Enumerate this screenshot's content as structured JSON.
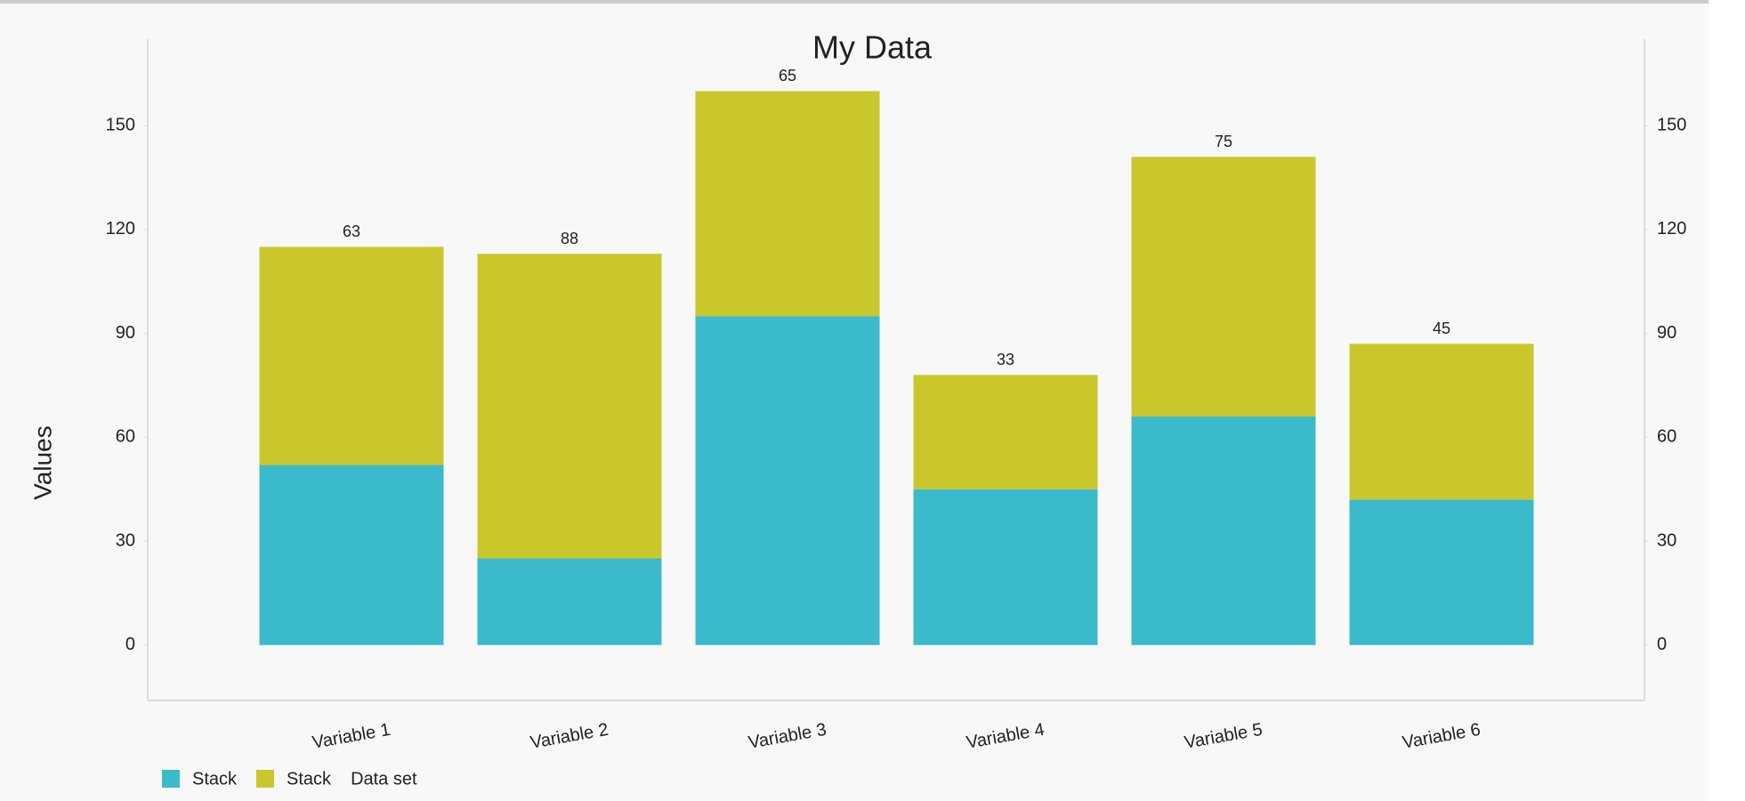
{
  "chart_data": {
    "type": "stacked_bar",
    "title": "My Data",
    "y_label": "Values",
    "categories": [
      "Variable 1",
      "Variable 2",
      "Variable 3",
      "Variable 4",
      "Variable 5",
      "Variable 6"
    ],
    "series": [
      {
        "name": "Stack",
        "color": "#3bbacb",
        "values": [
          52,
          25,
          95,
          45,
          66,
          42
        ]
      },
      {
        "name": "Stack",
        "color": "#c9c72b",
        "values": [
          63,
          88,
          65,
          33,
          75,
          45
        ]
      }
    ],
    "legend_title": "Data set",
    "ylim": [
      -16,
      175
    ],
    "yticks": [
      0,
      30,
      60,
      90,
      120,
      150
    ],
    "y2lim": [
      -16,
      175
    ],
    "y2ticks": [
      0,
      30,
      60,
      90,
      120,
      150
    ],
    "legend": "bottom-left",
    "grid": false
  }
}
